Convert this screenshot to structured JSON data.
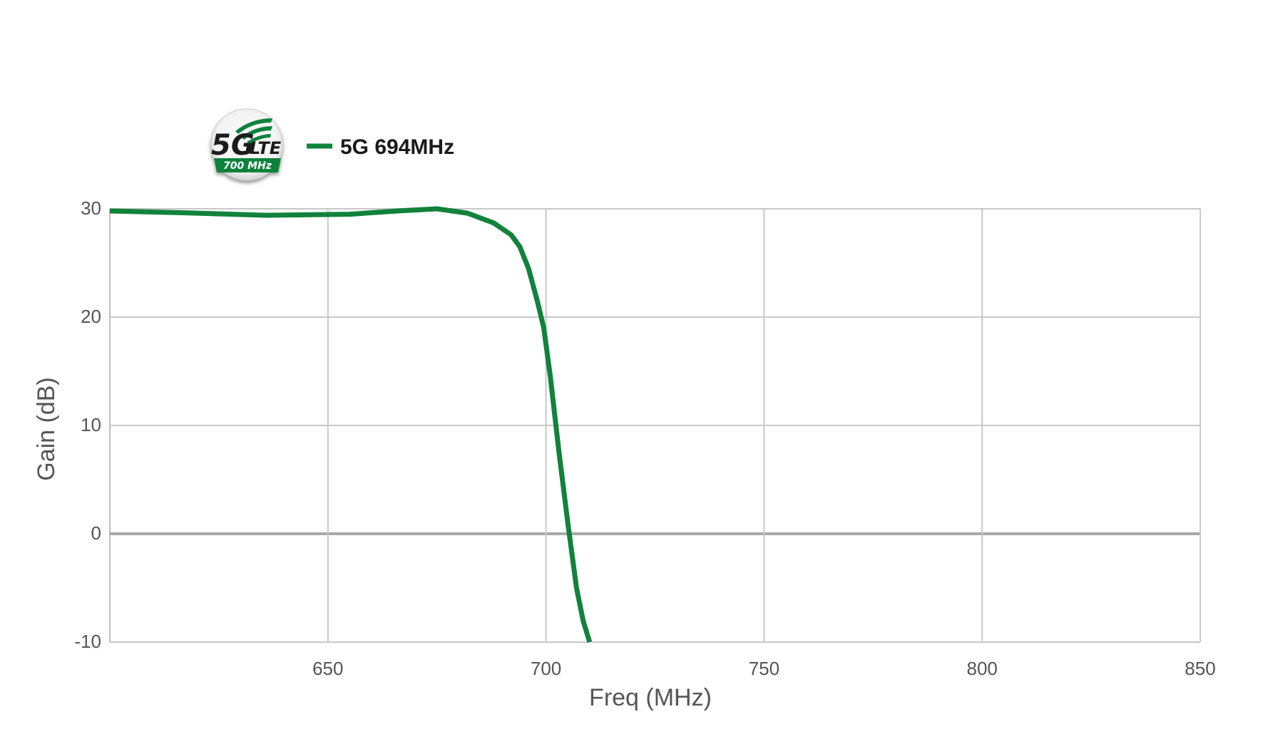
{
  "badge": {
    "generation": "5G",
    "tech": "LTE",
    "band": "700 MHz"
  },
  "chart_data": {
    "type": "line",
    "title": "",
    "xlabel": "Freq (MHz)",
    "ylabel": "Gain (dB)",
    "xlim": [
      600,
      850
    ],
    "ylim": [
      -10,
      30
    ],
    "x_ticks": [
      650,
      700,
      750,
      800,
      850
    ],
    "y_ticks": [
      30,
      20,
      10,
      0,
      -10
    ],
    "grid": true,
    "legend_position": "top-left",
    "series": [
      {
        "name": "5G 694MHz",
        "color": "#11823b",
        "x": [
          600,
          620,
          636,
          655,
          666,
          675,
          682,
          688,
          692,
          694,
          696,
          698,
          699.5,
          701,
          703,
          705,
          707,
          708.5,
          710
        ],
        "y": [
          29.8,
          29.6,
          29.4,
          29.5,
          29.8,
          30.0,
          29.6,
          28.7,
          27.6,
          26.5,
          24.5,
          21.5,
          19.0,
          14.5,
          7.5,
          1.0,
          -5.0,
          -8.0,
          -10.0
        ]
      }
    ]
  }
}
